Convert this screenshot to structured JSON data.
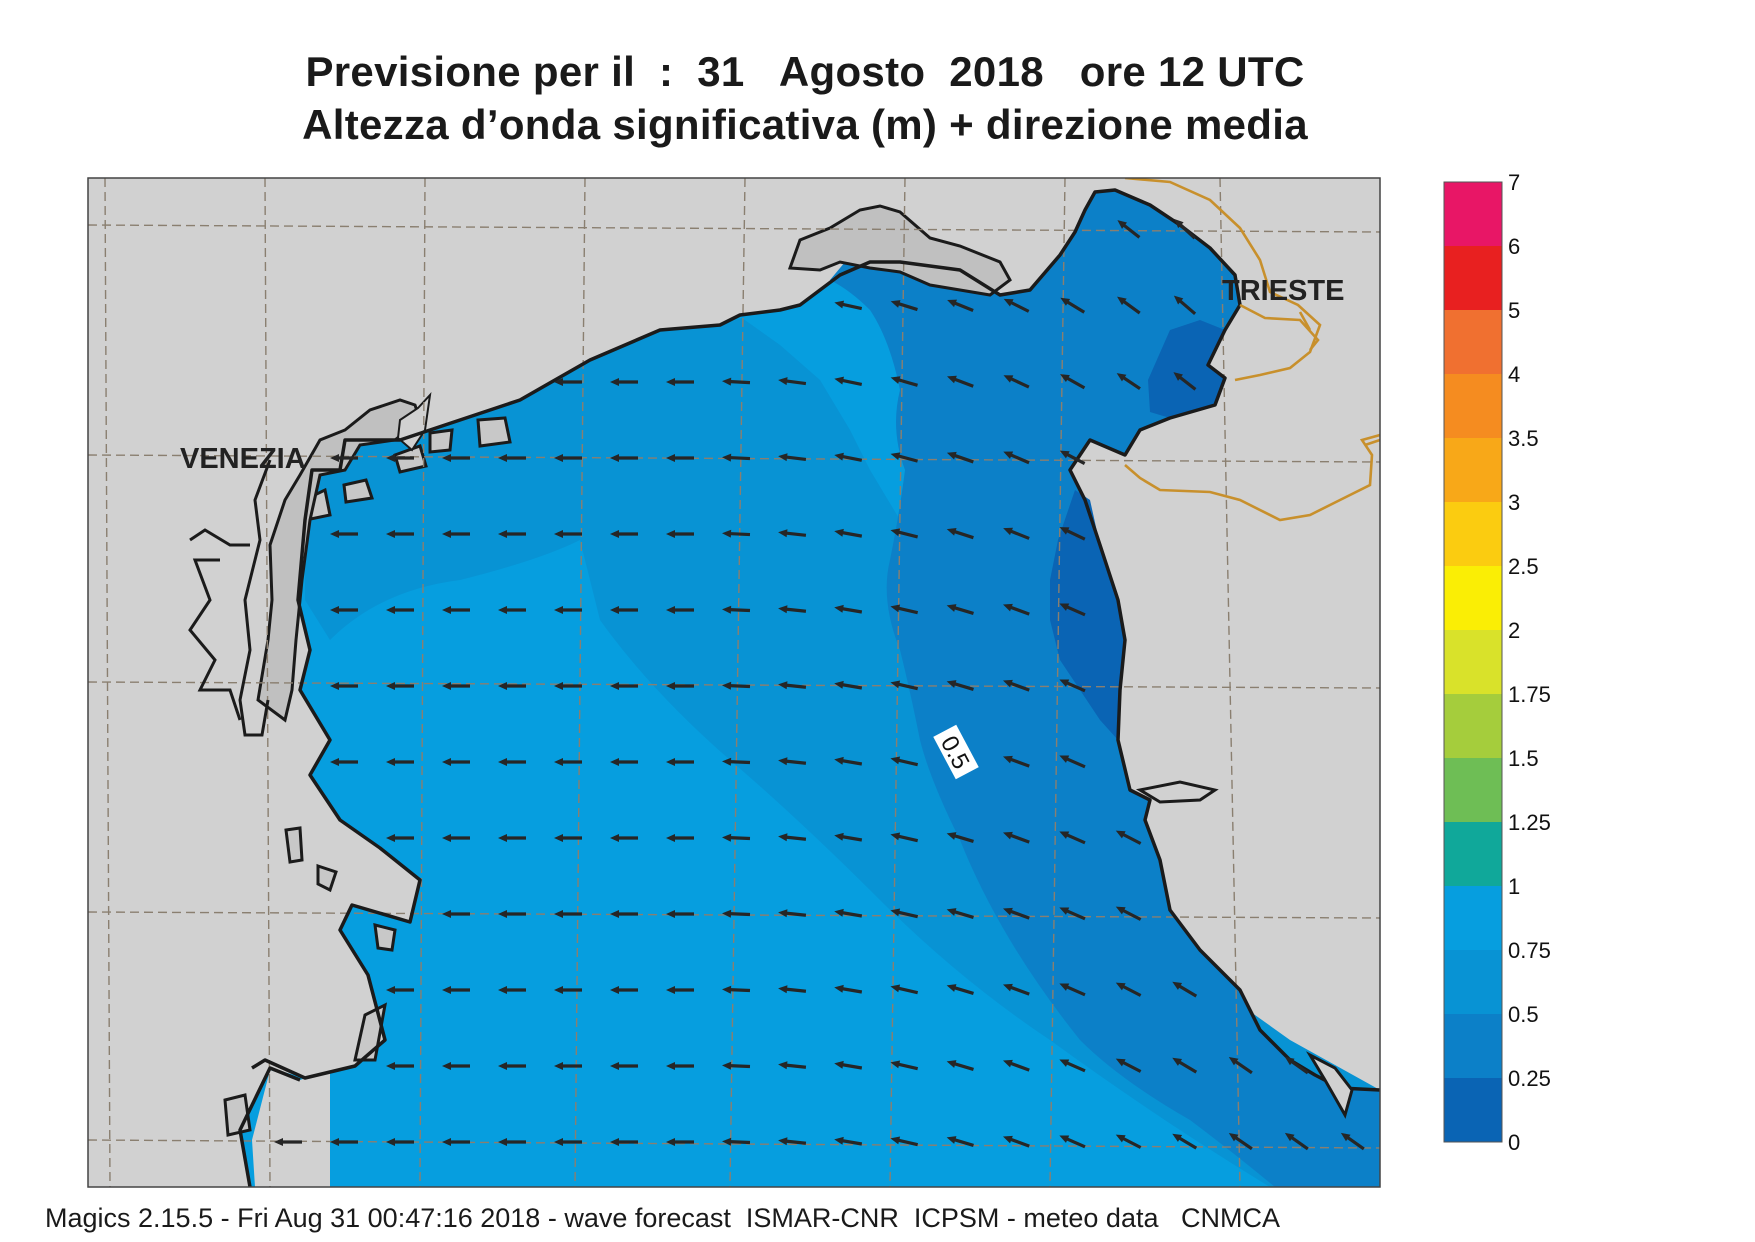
{
  "title": {
    "line1": "Previsione per il  :  31   Agosto  2018   ore 12 UTC",
    "line2": "Altezza d’onda significativa (m) + direzione media"
  },
  "map": {
    "cities": [
      {
        "name": "VENEZIA"
      },
      {
        "name": "TRIESTE"
      }
    ],
    "contour_label": "0.5",
    "colors": {
      "land": "#d1d1d1",
      "coast": "#1b1b1b",
      "border": "#c8902c",
      "grid": "#8a7f70",
      "arrow": "#262626"
    }
  },
  "legend": {
    "items": [
      {
        "label": "7",
        "color": "#e81666"
      },
      {
        "label": "6",
        "color": "#e82020"
      },
      {
        "label": "5",
        "color": "#f07030"
      },
      {
        "label": "4",
        "color": "#f58c20"
      },
      {
        "label": "3.5",
        "color": "#f8a818"
      },
      {
        "label": "3",
        "color": "#fbcc10"
      },
      {
        "label": "2.5",
        "color": "#faee05"
      },
      {
        "label": "2",
        "color": "#d9e22a"
      },
      {
        "label": "1.75",
        "color": "#a5cd3c"
      },
      {
        "label": "1.5",
        "color": "#6ebe55"
      },
      {
        "label": "1.25",
        "color": "#10a89a"
      },
      {
        "label": "1",
        "color": "#069edf"
      },
      {
        "label": "0.75",
        "color": "#0893d4"
      },
      {
        "label": "0.5",
        "color": "#0c80c8"
      },
      {
        "label": "0.25",
        "color": "#0a64b4"
      }
    ],
    "bottom_label": "0"
  },
  "footer": "Magics 2.15.5 - Fri Aug 31 00:47:16 2018 - wave forecast  ISMAR-CNR  ICPSM - meteo data   CNMCA"
}
